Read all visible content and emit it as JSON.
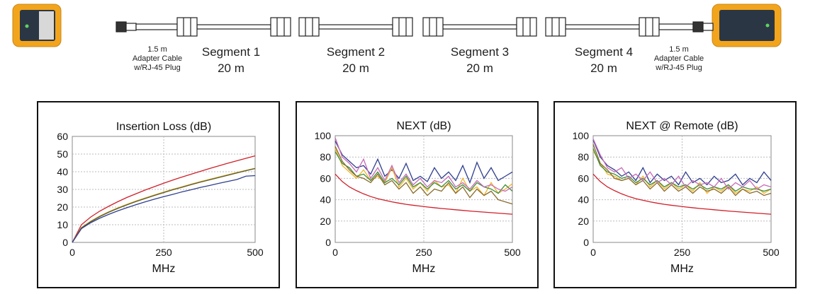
{
  "diagram": {
    "adapter_left": {
      "length": "1.5 m",
      "line1": "Adapter Cable",
      "line2": "w/RJ-45 Plug"
    },
    "adapter_right": {
      "length": "1.5 m",
      "line1": "Adapter Cable",
      "line2": "w/RJ-45 Plug"
    },
    "segments": [
      {
        "name": "Segment 1",
        "length": "20 m"
      },
      {
        "name": "Segment 2",
        "length": "20 m"
      },
      {
        "name": "Segment 3",
        "length": "20 m"
      },
      {
        "name": "Segment 4",
        "length": "20 m"
      }
    ],
    "colors": {
      "device_body": "#f2a51c",
      "device_face": "#2b3645"
    }
  },
  "chart_data": [
    {
      "type": "line",
      "title": "Insertion Loss (dB)",
      "xlabel": "MHz",
      "ylabel": "",
      "xlim": [
        0,
        500
      ],
      "ylim": [
        0,
        60
      ],
      "xticks": [
        0,
        250,
        500
      ],
      "yticks": [
        0,
        10,
        20,
        30,
        40,
        50,
        60
      ],
      "grid": true,
      "x": [
        0,
        25,
        50,
        75,
        100,
        125,
        150,
        175,
        200,
        225,
        250,
        275,
        300,
        325,
        350,
        375,
        400,
        425,
        450,
        475,
        500
      ],
      "series": [
        {
          "color": "#d0202a",
          "values": [
            0,
            10.0,
            14.3,
            17.7,
            20.5,
            23.1,
            25.5,
            27.6,
            29.7,
            31.6,
            33.5,
            35.3,
            37.0,
            38.6,
            40.2,
            41.8,
            43.3,
            44.8,
            46.2,
            47.6,
            49.0
          ]
        },
        {
          "color": "#e3b43a",
          "values": [
            0,
            8.4,
            12.0,
            14.9,
            17.4,
            19.6,
            21.6,
            23.5,
            25.2,
            26.9,
            28.5,
            30.1,
            31.5,
            33.0,
            34.4,
            35.7,
            37.0,
            38.3,
            39.6,
            40.8,
            42.0
          ]
        },
        {
          "color": "#5a5a2a",
          "values": [
            0,
            8.2,
            11.7,
            14.6,
            17.1,
            19.3,
            21.3,
            23.2,
            24.9,
            26.6,
            28.2,
            29.8,
            31.2,
            32.7,
            34.1,
            35.4,
            36.7,
            38.0,
            39.3,
            40.6,
            41.8
          ]
        },
        {
          "color": "#2e3f8f",
          "values": [
            0,
            7.8,
            11.1,
            13.7,
            15.9,
            17.9,
            19.7,
            21.4,
            23.0,
            24.5,
            25.9,
            27.2,
            28.6,
            29.8,
            31.1,
            32.2,
            33.4,
            34.5,
            35.6,
            37.5,
            37.8
          ]
        }
      ]
    },
    {
      "type": "line",
      "title": "NEXT (dB)",
      "xlabel": "MHz",
      "ylabel": "",
      "xlim": [
        0,
        500
      ],
      "ylim": [
        0,
        100
      ],
      "xticks": [
        0,
        250,
        500
      ],
      "yticks": [
        0,
        20,
        40,
        60,
        80,
        100
      ],
      "grid": true,
      "x": [
        0,
        20,
        40,
        60,
        80,
        100,
        120,
        140,
        160,
        180,
        200,
        220,
        240,
        260,
        280,
        300,
        320,
        340,
        360,
        380,
        400,
        420,
        440,
        460,
        480,
        500
      ],
      "series": [
        {
          "color": "#2e3f8f",
          "values": [
            95,
            82,
            76,
            70,
            72,
            64,
            78,
            62,
            68,
            60,
            74,
            58,
            62,
            57,
            70,
            60,
            66,
            58,
            72,
            56,
            75,
            60,
            70,
            58,
            62,
            66
          ]
        },
        {
          "color": "#f0b429",
          "values": [
            88,
            72,
            66,
            60,
            68,
            58,
            62,
            56,
            70,
            52,
            60,
            50,
            56,
            48,
            58,
            52,
            54,
            46,
            60,
            48,
            52,
            44,
            56,
            46,
            50,
            55
          ]
        },
        {
          "color": "#3a8f3a",
          "values": [
            85,
            74,
            70,
            62,
            64,
            58,
            66,
            56,
            60,
            54,
            62,
            52,
            56,
            50,
            56,
            52,
            58,
            50,
            54,
            48,
            56,
            52,
            50,
            46,
            54,
            48
          ]
        },
        {
          "color": "#8a6a2a",
          "values": [
            90,
            76,
            68,
            62,
            60,
            56,
            64,
            54,
            58,
            50,
            56,
            46,
            52,
            44,
            50,
            48,
            56,
            46,
            52,
            42,
            50,
            44,
            48,
            40,
            38,
            36
          ]
        },
        {
          "color": "#c86ab8",
          "values": [
            98,
            80,
            74,
            66,
            78,
            60,
            70,
            58,
            72,
            56,
            64,
            54,
            60,
            52,
            58,
            56,
            62,
            52,
            56,
            50,
            58,
            52,
            54,
            50,
            48,
            52
          ]
        },
        {
          "color": "#d0202a",
          "values": [
            64,
            57,
            52,
            48.5,
            45.5,
            43,
            41,
            39.5,
            38,
            36.8,
            35.7,
            34.8,
            34,
            33.2,
            32.5,
            31.8,
            31.2,
            30.6,
            30,
            29.4,
            28.9,
            28.4,
            27.9,
            27.4,
            26.9,
            26.4
          ]
        }
      ]
    },
    {
      "type": "line",
      "title": "NEXT @ Remote (dB)",
      "xlabel": "MHz",
      "ylabel": "",
      "xlim": [
        0,
        500
      ],
      "ylim": [
        0,
        100
      ],
      "xticks": [
        0,
        250,
        500
      ],
      "yticks": [
        0,
        20,
        40,
        60,
        80,
        100
      ],
      "grid": true,
      "x": [
        0,
        20,
        40,
        60,
        80,
        100,
        120,
        140,
        160,
        180,
        200,
        220,
        240,
        260,
        280,
        300,
        320,
        340,
        360,
        380,
        400,
        420,
        440,
        460,
        480,
        500
      ],
      "series": [
        {
          "color": "#2e3f8f",
          "values": [
            96,
            80,
            72,
            68,
            62,
            66,
            58,
            70,
            56,
            64,
            58,
            62,
            54,
            66,
            56,
            60,
            54,
            62,
            56,
            58,
            64,
            54,
            60,
            56,
            66,
            58
          ]
        },
        {
          "color": "#f0b429",
          "values": [
            86,
            74,
            64,
            62,
            58,
            60,
            54,
            62,
            52,
            58,
            50,
            56,
            50,
            54,
            48,
            56,
            46,
            52,
            48,
            54,
            46,
            50,
            48,
            52,
            46,
            50
          ]
        },
        {
          "color": "#3a8f3a",
          "values": [
            88,
            72,
            66,
            64,
            60,
            62,
            56,
            60,
            54,
            58,
            52,
            56,
            52,
            54,
            50,
            54,
            50,
            52,
            50,
            54,
            48,
            52,
            50,
            50,
            48,
            50
          ]
        },
        {
          "color": "#8a6a2a",
          "values": [
            92,
            74,
            68,
            60,
            58,
            60,
            54,
            58,
            50,
            56,
            48,
            54,
            48,
            52,
            46,
            52,
            48,
            50,
            46,
            52,
            44,
            50,
            46,
            48,
            44,
            46
          ]
        },
        {
          "color": "#c86ab8",
          "values": [
            97,
            82,
            70,
            66,
            70,
            60,
            64,
            58,
            66,
            56,
            60,
            54,
            62,
            52,
            58,
            54,
            56,
            52,
            60,
            50,
            56,
            52,
            58,
            50,
            54,
            52
          ]
        },
        {
          "color": "#d0202a",
          "values": [
            64,
            57,
            52,
            48.5,
            45.5,
            43,
            41,
            39.5,
            38,
            36.8,
            35.7,
            34.8,
            34,
            33.2,
            32.5,
            31.8,
            31.2,
            30.6,
            30,
            29.4,
            28.9,
            28.4,
            27.9,
            27.4,
            26.9,
            26.4
          ]
        }
      ]
    }
  ]
}
